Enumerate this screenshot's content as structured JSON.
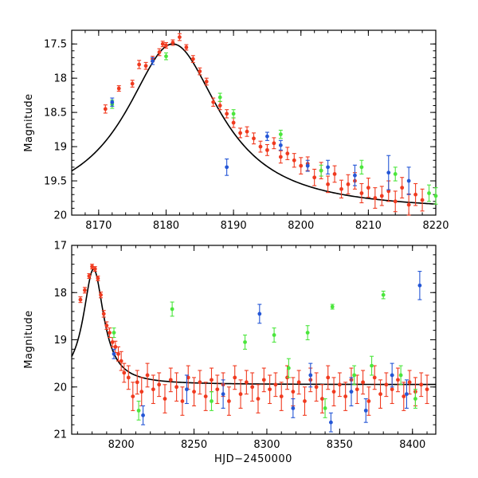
{
  "colors": {
    "red": "#f03a1f",
    "green": "#4be63c",
    "blue": "#2456d6",
    "model": "#000000"
  },
  "chart_data": [
    {
      "type": "scatter",
      "id": "top",
      "title": "",
      "xlabel": "",
      "ylabel": "Magnitude",
      "xlim": [
        8166,
        8220
      ],
      "ylim": [
        20,
        17.3
      ],
      "y_inverted": true,
      "xticks": [
        8170,
        8180,
        8190,
        8200,
        8210,
        8220
      ],
      "yticks": [
        17.5,
        18,
        18.5,
        19,
        19.5,
        20
      ],
      "ytick_labels": [
        "17.5",
        "18",
        "18.5",
        "19",
        "19.5",
        "20"
      ],
      "model": {
        "type": "line",
        "peak_x": 8181,
        "peak_mag": 17.5,
        "baseline_mag": 19.95,
        "rise_tau": 8.5,
        "decay_tau": 8.5,
        "x_range": [
          8166,
          8220
        ]
      },
      "series": [
        {
          "color": "red",
          "points": [
            [
              8171,
              18.45,
              0.06
            ],
            [
              8173,
              18.15,
              0.04
            ],
            [
              8175,
              18.08,
              0.05
            ],
            [
              8176,
              17.8,
              0.06
            ],
            [
              8177,
              17.82,
              0.05
            ],
            [
              8178,
              17.72,
              0.04
            ],
            [
              8179,
              17.62,
              0.05
            ],
            [
              8179.5,
              17.5,
              0.04
            ],
            [
              8180,
              17.52,
              0.04
            ],
            [
              8181,
              17.48,
              0.04
            ],
            [
              8182,
              17.4,
              0.05
            ],
            [
              8183,
              17.55,
              0.04
            ],
            [
              8184,
              17.72,
              0.05
            ],
            [
              8185,
              17.9,
              0.05
            ],
            [
              8186,
              18.05,
              0.05
            ],
            [
              8187,
              18.35,
              0.06
            ],
            [
              8188,
              18.4,
              0.06
            ],
            [
              8189,
              18.52,
              0.06
            ],
            [
              8190,
              18.65,
              0.07
            ],
            [
              8191,
              18.8,
              0.07
            ],
            [
              8192,
              18.78,
              0.07
            ],
            [
              8193,
              18.88,
              0.08
            ],
            [
              8194,
              19.0,
              0.08
            ],
            [
              8195,
              19.05,
              0.08
            ],
            [
              8196,
              18.95,
              0.08
            ],
            [
              8197,
              19.15,
              0.09
            ],
            [
              8198,
              19.1,
              0.09
            ],
            [
              8199,
              19.2,
              0.1
            ],
            [
              8200,
              19.28,
              0.12
            ],
            [
              8201,
              19.25,
              0.1
            ],
            [
              8202,
              19.45,
              0.12
            ],
            [
              8203,
              19.35,
              0.12
            ],
            [
              8204,
              19.55,
              0.12
            ],
            [
              8205,
              19.4,
              0.12
            ],
            [
              8206,
              19.62,
              0.13
            ],
            [
              8207,
              19.55,
              0.14
            ],
            [
              8208,
              19.5,
              0.12
            ],
            [
              8209,
              19.68,
              0.14
            ],
            [
              8210,
              19.6,
              0.14
            ],
            [
              8211,
              19.75,
              0.15
            ],
            [
              8212,
              19.72,
              0.14
            ],
            [
              8213,
              19.65,
              0.15
            ],
            [
              8214,
              19.8,
              0.15
            ],
            [
              8215,
              19.6,
              0.15
            ],
            [
              8216,
              19.85,
              0.16
            ],
            [
              8217,
              19.7,
              0.16
            ],
            [
              8218,
              19.78,
              0.16
            ]
          ]
        },
        {
          "color": "green",
          "points": [
            [
              8172,
              18.38,
              0.06
            ],
            [
              8180,
              17.68,
              0.05
            ],
            [
              8188,
              18.28,
              0.06
            ],
            [
              8190,
              18.52,
              0.06
            ],
            [
              8197,
              18.82,
              0.06
            ],
            [
              8203,
              19.35,
              0.08
            ],
            [
              8209,
              19.3,
              0.1
            ],
            [
              8214,
              19.4,
              0.1
            ],
            [
              8219,
              19.68,
              0.12
            ],
            [
              8220,
              19.72,
              0.12
            ]
          ]
        },
        {
          "color": "blue",
          "points": [
            [
              8172,
              18.35,
              0.06
            ],
            [
              8178,
              17.75,
              0.05
            ],
            [
              8189,
              19.3,
              0.12
            ],
            [
              8195,
              18.85,
              0.06
            ],
            [
              8197,
              18.98,
              0.07
            ],
            [
              8201,
              19.28,
              0.08
            ],
            [
              8204,
              19.3,
              0.1
            ],
            [
              8208,
              19.42,
              0.15
            ],
            [
              8213,
              19.38,
              0.25
            ],
            [
              8216,
              19.5,
              0.2
            ]
          ]
        }
      ]
    },
    {
      "type": "scatter",
      "id": "bottom",
      "title": "",
      "xlabel": "HJD−2450000",
      "ylabel": "Magnitude",
      "xlim": [
        8166,
        8416
      ],
      "ylim": [
        21,
        17
      ],
      "y_inverted": true,
      "xticks": [
        8200,
        8250,
        8300,
        8350,
        8400
      ],
      "yticks": [
        17,
        18,
        19,
        20,
        21
      ],
      "ytick_labels": [
        "17",
        "18",
        "19",
        "20",
        "21"
      ],
      "model": {
        "type": "line",
        "peak_x": 8181,
        "peak_mag": 17.5,
        "baseline_mag": 19.95,
        "rise_tau": 8.5,
        "decay_tau": 8.5,
        "x_range": [
          8166,
          8416
        ]
      },
      "series": [
        {
          "color": "red",
          "points": [
            [
              8172,
              18.15,
              0.06
            ],
            [
              8175,
              17.95,
              0.06
            ],
            [
              8178,
              17.65,
              0.05
            ],
            [
              8180,
              17.45,
              0.05
            ],
            [
              8182,
              17.5,
              0.05
            ],
            [
              8184,
              17.7,
              0.05
            ],
            [
              8186,
              18.05,
              0.06
            ],
            [
              8188,
              18.45,
              0.07
            ],
            [
              8190,
              18.7,
              0.08
            ],
            [
              8192,
              18.85,
              0.1
            ],
            [
              8194,
              19.05,
              0.1
            ],
            [
              8196,
              19.15,
              0.12
            ],
            [
              8198,
              19.3,
              0.15
            ],
            [
              8200,
              19.45,
              0.2
            ],
            [
              8202,
              19.7,
              0.2
            ],
            [
              8205,
              19.8,
              0.25
            ],
            [
              8208,
              20.2,
              0.3
            ],
            [
              8211,
              19.9,
              0.25
            ],
            [
              8214,
              20.1,
              0.3
            ],
            [
              8218,
              19.75,
              0.25
            ],
            [
              8222,
              20.05,
              0.3
            ],
            [
              8226,
              19.95,
              0.25
            ],
            [
              8230,
              20.25,
              0.3
            ],
            [
              8234,
              19.85,
              0.25
            ],
            [
              8238,
              20.0,
              0.3
            ],
            [
              8242,
              20.3,
              0.3
            ],
            [
              8246,
              19.8,
              0.25
            ],
            [
              8250,
              20.1,
              0.3
            ],
            [
              8254,
              19.9,
              0.25
            ],
            [
              8258,
              20.2,
              0.3
            ],
            [
              8262,
              19.85,
              0.25
            ],
            [
              8266,
              20.05,
              0.3
            ],
            [
              8270,
              19.95,
              0.25
            ],
            [
              8274,
              20.3,
              0.3
            ],
            [
              8278,
              19.8,
              0.25
            ],
            [
              8282,
              20.15,
              0.3
            ],
            [
              8286,
              19.9,
              0.25
            ],
            [
              8290,
              20.0,
              0.3
            ],
            [
              8294,
              20.25,
              0.3
            ],
            [
              8298,
              19.85,
              0.25
            ],
            [
              8302,
              20.05,
              0.3
            ],
            [
              8306,
              19.95,
              0.25
            ],
            [
              8310,
              20.2,
              0.3
            ],
            [
              8314,
              19.8,
              0.25
            ],
            [
              8318,
              20.1,
              0.3
            ],
            [
              8322,
              19.9,
              0.25
            ],
            [
              8326,
              20.3,
              0.3
            ],
            [
              8330,
              19.85,
              0.25
            ],
            [
              8334,
              20.0,
              0.3
            ],
            [
              8338,
              20.25,
              0.3
            ],
            [
              8342,
              19.8,
              0.25
            ],
            [
              8346,
              20.1,
              0.3
            ],
            [
              8350,
              19.95,
              0.25
            ],
            [
              8354,
              20.2,
              0.3
            ],
            [
              8358,
              19.85,
              0.25
            ],
            [
              8362,
              20.05,
              0.3
            ],
            [
              8366,
              19.9,
              0.25
            ],
            [
              8370,
              20.3,
              0.3
            ],
            [
              8374,
              19.8,
              0.25
            ],
            [
              8378,
              20.15,
              0.3
            ],
            [
              8382,
              19.95,
              0.25
            ],
            [
              8386,
              20.05,
              0.3
            ],
            [
              8390,
              19.85,
              0.25
            ],
            [
              8394,
              20.2,
              0.3
            ],
            [
              8398,
              19.9,
              0.25
            ],
            [
              8402,
              20.1,
              0.3
            ],
            [
              8406,
              19.95,
              0.25
            ],
            [
              8410,
              20.05,
              0.3
            ]
          ]
        },
        {
          "color": "green",
          "points": [
            [
              8195,
              18.85,
              0.1
            ],
            [
              8212,
              20.5,
              0.2
            ],
            [
              8235,
              18.35,
              0.15
            ],
            [
              8262,
              20.3,
              0.2
            ],
            [
              8285,
              19.05,
              0.15
            ],
            [
              8305,
              18.9,
              0.15
            ],
            [
              8315,
              19.6,
              0.2
            ],
            [
              8328,
              18.85,
              0.15
            ],
            [
              8340,
              20.45,
              0.2
            ],
            [
              8345,
              18.3,
              0.05
            ],
            [
              8360,
              19.75,
              0.2
            ],
            [
              8372,
              19.55,
              0.2
            ],
            [
              8380,
              18.05,
              0.08
            ],
            [
              8392,
              19.75,
              0.2
            ],
            [
              8402,
              20.25,
              0.2
            ]
          ]
        },
        {
          "color": "blue",
          "points": [
            [
              8195,
              19.3,
              0.1
            ],
            [
              8215,
              20.6,
              0.2
            ],
            [
              8245,
              20.05,
              0.3
            ],
            [
              8270,
              20.15,
              0.3
            ],
            [
              8295,
              18.45,
              0.2
            ],
            [
              8318,
              20.45,
              0.2
            ],
            [
              8330,
              19.75,
              0.25
            ],
            [
              8344,
              20.75,
              0.2
            ],
            [
              8358,
              20.1,
              0.3
            ],
            [
              8368,
              20.5,
              0.25
            ],
            [
              8386,
              19.75,
              0.25
            ],
            [
              8396,
              20.15,
              0.3
            ],
            [
              8405,
              17.85,
              0.3
            ]
          ]
        }
      ]
    }
  ]
}
